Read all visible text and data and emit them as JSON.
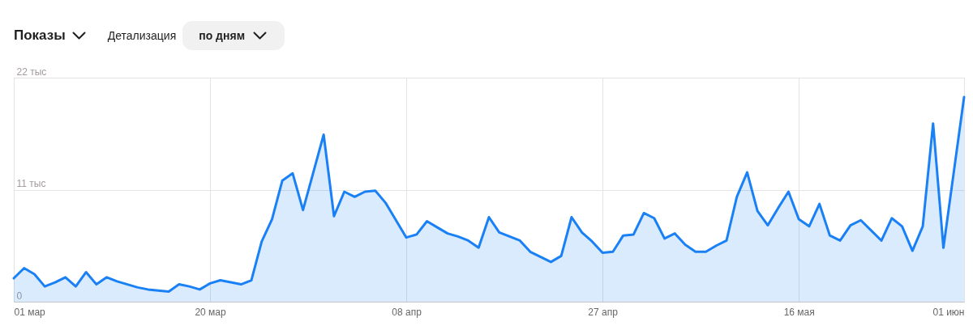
{
  "chart_data": {
    "type": "area",
    "title": "Показы",
    "annotations": [
      "Детализация",
      "по дням"
    ],
    "x": [
      "--03-01",
      "--03-02",
      "--03-03",
      "--03-04",
      "--03-05",
      "--03-06",
      "--03-07",
      "--03-08",
      "--03-09",
      "--03-10",
      "--03-11",
      "--03-12",
      "--03-13",
      "--03-14",
      "--03-15",
      "--03-16",
      "--03-17",
      "--03-18",
      "--03-19",
      "--03-20",
      "--03-21",
      "--03-22",
      "--03-23",
      "--03-24",
      "--03-25",
      "--03-26",
      "--03-27",
      "--03-28",
      "--03-29",
      "--03-30",
      "--03-31",
      "--04-01",
      "--04-02",
      "--04-03",
      "--04-04",
      "--04-05",
      "--04-06",
      "--04-07",
      "--04-08",
      "--04-09",
      "--04-10",
      "--04-11",
      "--04-12",
      "--04-13",
      "--04-14",
      "--04-15",
      "--04-16",
      "--04-17",
      "--04-18",
      "--04-19",
      "--04-20",
      "--04-21",
      "--04-22",
      "--04-23",
      "--04-24",
      "--04-25",
      "--04-26",
      "--04-27",
      "--04-28",
      "--04-29",
      "--04-30",
      "--05-01",
      "--05-02",
      "--05-03",
      "--05-04",
      "--05-05",
      "--05-06",
      "--05-07",
      "--05-08",
      "--05-09",
      "--05-10",
      "--05-11",
      "--05-12",
      "--05-13",
      "--05-14",
      "--05-15",
      "--05-16",
      "--05-17",
      "--05-18",
      "--05-19",
      "--05-20",
      "--05-21",
      "--05-22",
      "--05-23",
      "--05-24",
      "--05-25",
      "--05-26",
      "--05-27",
      "--05-28",
      "--05-29",
      "--05-30",
      "--05-31",
      "--06-01"
    ],
    "series": [
      {
        "color": "#1a80f5",
        "values": [
          2.3,
          3.3,
          2.7,
          1.5,
          1.9,
          2.4,
          1.5,
          2.9,
          1.7,
          2.4,
          2.0,
          1.7,
          1.4,
          1.2,
          1.1,
          1.0,
          1.7,
          1.5,
          1.2,
          1.8,
          2.1,
          1.9,
          1.7,
          2.1,
          5.9,
          8.1,
          11.9,
          12.6,
          9.0,
          12.7,
          16.4,
          8.4,
          10.8,
          10.3,
          10.8,
          10.9,
          9.7,
          8.0,
          6.3,
          6.6,
          7.9,
          7.3,
          6.7,
          6.4,
          6.0,
          5.3,
          8.3,
          6.8,
          6.4,
          6.0,
          4.9,
          4.4,
          3.9,
          4.5,
          8.3,
          6.8,
          5.9,
          4.8,
          4.9,
          6.5,
          6.6,
          8.7,
          8.2,
          6.2,
          6.7,
          5.6,
          4.9,
          4.9,
          5.5,
          6.0,
          10.3,
          12.7,
          8.9,
          7.5,
          9.2,
          10.8,
          8.1,
          7.4,
          9.6,
          6.5,
          6.0,
          7.5,
          8.0,
          7.0,
          6.0,
          8.2,
          7.4,
          5.0,
          7.4,
          17.5,
          5.3,
          12.7,
          20.1
        ]
      }
    ],
    "xlim": [
      "--03-01",
      "--06-01"
    ],
    "xticks": [
      {
        "value": "--03-01",
        "label": "01 мар"
      },
      {
        "value": "--03-20",
        "label": "20 мар"
      },
      {
        "value": "--04-08",
        "label": "08 апр"
      },
      {
        "value": "--04-27",
        "label": "27 апр"
      },
      {
        "value": "--05-16",
        "label": "16 мая"
      },
      {
        "value": "--06-01",
        "label": "01 июн"
      }
    ],
    "ylim": [
      0,
      22
    ],
    "yticks": [
      0,
      {
        "value": 11,
        "label": "11 тыс"
      },
      {
        "value": 22,
        "label": "22 тыс"
      }
    ],
    "grid": true
  }
}
